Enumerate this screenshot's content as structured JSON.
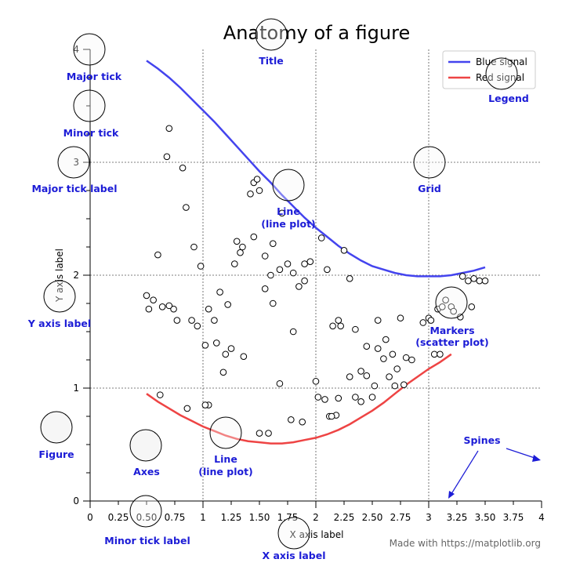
{
  "chart_data": {
    "type": "line",
    "title": "Anatomy of a figure",
    "xlabel": "X axis label",
    "ylabel": "Y axis label",
    "xlim": [
      0,
      4
    ],
    "ylim": [
      0,
      4
    ],
    "grid": true,
    "legend_position": "top-right",
    "major_x_ticks": [
      0,
      1,
      2,
      3,
      4
    ],
    "minor_x_ticks": [
      0.25,
      0.5,
      0.75,
      1.25,
      1.5,
      1.75,
      2.25,
      2.5,
      2.75,
      3.25,
      3.5,
      3.75
    ],
    "major_x_tick_labels": [
      "0",
      "1",
      "2",
      "3",
      "4"
    ],
    "minor_x_tick_labels": [
      "0.25",
      "0.50",
      "0.75",
      "1.25",
      "1.50",
      "1.75",
      "2.25",
      "2.50",
      "2.75",
      "3.25",
      "3.50",
      "3.75"
    ],
    "major_y_ticks": [
      0,
      1,
      2,
      3,
      4
    ],
    "major_y_tick_labels": [
      "0",
      "1",
      "2",
      "3",
      "4"
    ],
    "series": [
      {
        "name": "Blue signal",
        "color": "#4444ee",
        "x": [
          0.5,
          0.6,
          0.7,
          0.8,
          0.9,
          1.0,
          1.1,
          1.2,
          1.3,
          1.4,
          1.5,
          1.6,
          1.7,
          1.8,
          1.9,
          2.0,
          2.1,
          2.2,
          2.3,
          2.4,
          2.5,
          2.6,
          2.7,
          2.8,
          2.9,
          3.0,
          3.1,
          3.2,
          3.3,
          3.4,
          3.5
        ],
        "y": [
          3.9,
          3.83,
          3.75,
          3.66,
          3.56,
          3.46,
          3.36,
          3.25,
          3.14,
          3.03,
          2.92,
          2.82,
          2.71,
          2.61,
          2.51,
          2.42,
          2.34,
          2.26,
          2.19,
          2.13,
          2.08,
          2.05,
          2.02,
          2.0,
          1.99,
          1.99,
          1.99,
          2.0,
          2.02,
          2.04,
          2.07
        ]
      },
      {
        "name": "Red signal",
        "color": "#ee4444",
        "x": [
          0.5,
          0.6,
          0.7,
          0.8,
          0.9,
          1.0,
          1.1,
          1.2,
          1.3,
          1.4,
          1.5,
          1.6,
          1.7,
          1.8,
          1.9,
          2.0,
          2.1,
          2.2,
          2.3,
          2.4,
          2.5,
          2.6,
          2.7,
          2.8,
          2.9,
          3.0,
          3.1,
          3.2
        ],
        "y": [
          0.95,
          0.88,
          0.82,
          0.76,
          0.71,
          0.66,
          0.62,
          0.58,
          0.55,
          0.53,
          0.52,
          0.51,
          0.51,
          0.52,
          0.54,
          0.56,
          0.59,
          0.63,
          0.68,
          0.74,
          0.8,
          0.87,
          0.95,
          1.03,
          1.1,
          1.17,
          1.23,
          1.3
        ]
      },
      {
        "name": "",
        "type": "scatter",
        "x": [
          0.7,
          0.68,
          0.82,
          0.85,
          0.6,
          0.92,
          0.98,
          0.5,
          0.52,
          0.56,
          0.64,
          0.74,
          0.77,
          0.9,
          0.95,
          1.05,
          1.1,
          1.12,
          1.15,
          1.2,
          1.28,
          1.3,
          1.33,
          1.35,
          1.42,
          1.45,
          1.48,
          1.5,
          1.55,
          1.6,
          1.62,
          1.68,
          1.75,
          1.8,
          1.85,
          1.9,
          1.95,
          2.05,
          2.1,
          2.15,
          2.2,
          2.25,
          2.3,
          2.35,
          2.4,
          2.45,
          2.5,
          2.55,
          2.6,
          2.65,
          2.7,
          2.75,
          2.8,
          2.85,
          3.0,
          3.05,
          3.1,
          3.15,
          3.2,
          3.3,
          3.35,
          3.4,
          3.45,
          3.5,
          1.02,
          1.05,
          1.18,
          1.25,
          1.45,
          1.55,
          1.62,
          1.7,
          1.8,
          1.9,
          2.02,
          2.08,
          2.12,
          2.18,
          2.22,
          2.3,
          2.35,
          2.4,
          2.45,
          2.52,
          2.55,
          2.62,
          2.68,
          2.72,
          2.78,
          2.95,
          3.02,
          3.08,
          3.12,
          3.22,
          3.28,
          3.38,
          0.62,
          0.86,
          1.02,
          1.5,
          1.58,
          1.78,
          1.88,
          2.0,
          2.14,
          2.2,
          0.7,
          1.22,
          1.36,
          1.68
        ],
        "y": [
          3.3,
          3.05,
          2.95,
          2.6,
          2.18,
          2.25,
          2.08,
          1.82,
          1.7,
          1.78,
          1.72,
          1.7,
          1.6,
          1.6,
          1.55,
          1.7,
          1.6,
          1.4,
          1.85,
          1.3,
          2.1,
          2.3,
          2.2,
          2.25,
          2.72,
          2.82,
          2.85,
          2.75,
          1.88,
          2.0,
          1.75,
          2.05,
          2.1,
          1.5,
          1.9,
          1.95,
          2.12,
          2.33,
          2.05,
          1.55,
          1.6,
          2.22,
          1.97,
          1.52,
          1.15,
          1.11,
          0.92,
          1.35,
          1.26,
          1.1,
          1.02,
          1.62,
          1.27,
          1.25,
          1.62,
          1.3,
          1.3,
          1.78,
          1.72,
          1.99,
          1.95,
          1.97,
          1.95,
          1.95,
          1.38,
          0.85,
          1.14,
          1.35,
          2.34,
          2.17,
          2.28,
          2.55,
          2.02,
          2.1,
          0.92,
          0.9,
          0.75,
          0.76,
          1.55,
          1.1,
          0.92,
          0.88,
          1.37,
          1.02,
          1.6,
          1.43,
          1.3,
          1.17,
          1.03,
          1.58,
          1.6,
          1.7,
          1.72,
          1.68,
          1.63,
          1.72,
          0.94,
          0.82,
          0.85,
          0.6,
          0.6,
          0.72,
          0.7,
          1.06,
          0.75,
          0.91,
          1.73,
          1.74,
          1.28,
          1.04
        ]
      }
    ]
  },
  "annotations": [
    {
      "key": "title",
      "text": "Title"
    },
    {
      "key": "major_tick",
      "text": "Major tick"
    },
    {
      "key": "minor_tick",
      "text": "Minor tick"
    },
    {
      "key": "major_tick_label",
      "text": "Major tick label"
    },
    {
      "key": "y_axis_label",
      "text": "Y axis label"
    },
    {
      "key": "figure",
      "text": "Figure"
    },
    {
      "key": "axes",
      "text": "Axes"
    },
    {
      "key": "line_red",
      "text": "Line"
    },
    {
      "key": "line_red_sub",
      "text": "(line plot)"
    },
    {
      "key": "line_blue",
      "text": "Line"
    },
    {
      "key": "line_blue_sub",
      "text": "(line plot)"
    },
    {
      "key": "grid",
      "text": "Grid"
    },
    {
      "key": "legend",
      "text": "Legend"
    },
    {
      "key": "markers",
      "text": "Markers"
    },
    {
      "key": "markers_sub",
      "text": "(scatter plot)"
    },
    {
      "key": "spines",
      "text": "Spines"
    },
    {
      "key": "minor_tick_label",
      "text": "Minor tick label"
    },
    {
      "key": "x_axis_label",
      "text": "X axis label"
    }
  ],
  "credit": "Made with https://matplotlib.org",
  "colors": {
    "annotation": "#1c1cd6",
    "blue_line": "#4444ee",
    "red_line": "#ee4444",
    "marker_edge": "#000000",
    "callout_fill": "#f5f5f5"
  }
}
